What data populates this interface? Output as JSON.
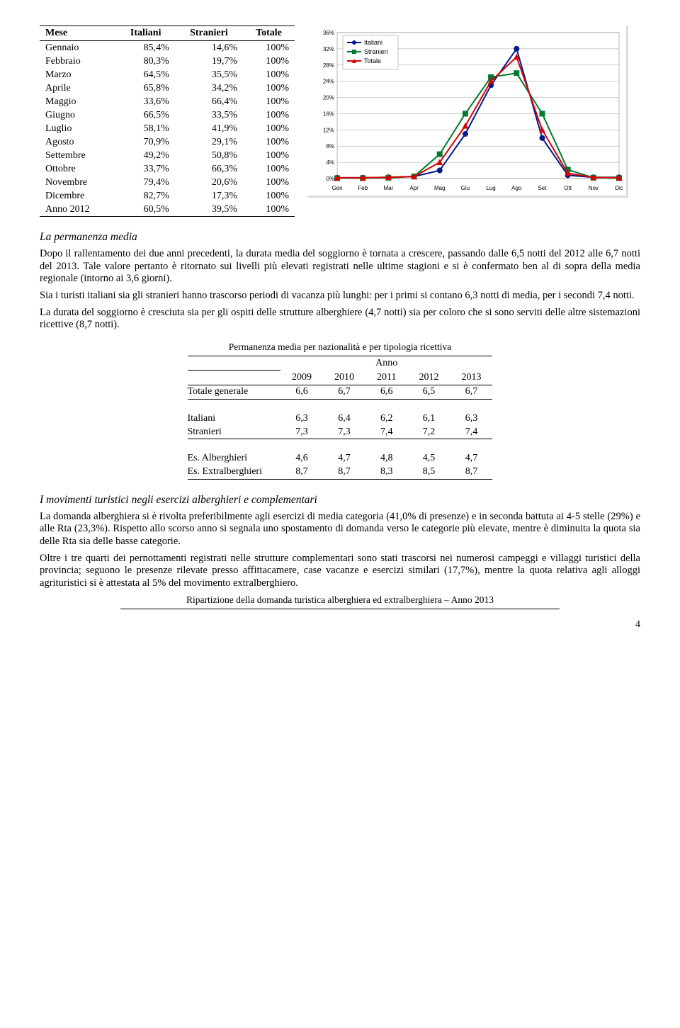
{
  "month_table": {
    "columns": [
      "Mese",
      "Italiani",
      "Stranieri",
      "Totale"
    ],
    "rows": [
      [
        "Gennaio",
        "85,4%",
        "14,6%",
        "100%"
      ],
      [
        "Febbraio",
        "80,3%",
        "19,7%",
        "100%"
      ],
      [
        "Marzo",
        "64,5%",
        "35,5%",
        "100%"
      ],
      [
        "Aprile",
        "65,8%",
        "34,2%",
        "100%"
      ],
      [
        "Maggio",
        "33,6%",
        "66,4%",
        "100%"
      ],
      [
        "Giugno",
        "66,5%",
        "33,5%",
        "100%"
      ],
      [
        "Luglio",
        "58,1%",
        "41,9%",
        "100%"
      ],
      [
        "Agosto",
        "70,9%",
        "29,1%",
        "100%"
      ],
      [
        "Settembre",
        "49,2%",
        "50,8%",
        "100%"
      ],
      [
        "Ottobre",
        "33,7%",
        "66,3%",
        "100%"
      ],
      [
        "Novembre",
        "79,4%",
        "20,6%",
        "100%"
      ],
      [
        "Dicembre",
        "82,7%",
        "17,3%",
        "100%"
      ],
      [
        "Anno 2012",
        "60,5%",
        "39,5%",
        "100%"
      ]
    ]
  },
  "chart": {
    "type": "line",
    "background_color": "#ffffff",
    "grid_color": "#888888",
    "ylim": [
      0,
      36
    ],
    "ytick_step": 4,
    "yticks": [
      "0%",
      "4%",
      "8%",
      "12%",
      "16%",
      "20%",
      "24%",
      "28%",
      "32%",
      "36%"
    ],
    "x_labels": [
      "Gen",
      "Feb",
      "Mar",
      "Apr",
      "Mag",
      "Giu",
      "Lug",
      "Ago",
      "Set",
      "Ott",
      "Nov",
      "Dic"
    ],
    "tick_fontsize": 8,
    "legend_fontsize": 9,
    "line_width": 2,
    "marker_style": "circle",
    "marker_size": 5,
    "series": [
      {
        "name": "Italiani",
        "color": "#001a8c",
        "marker": "circle",
        "values": [
          0.2,
          0.2,
          0.3,
          0.5,
          2.0,
          11.0,
          23.0,
          32.0,
          10.0,
          0.8,
          0.3,
          0.3
        ]
      },
      {
        "name": "Stranieri",
        "color": "#007a33",
        "marker": "square",
        "values": [
          0.1,
          0.1,
          0.2,
          0.5,
          6.0,
          16.0,
          25.0,
          26.0,
          16.0,
          2.2,
          0.2,
          0.1
        ]
      },
      {
        "name": "Totale",
        "color": "#d80000",
        "marker": "triangle",
        "values": [
          0.2,
          0.2,
          0.3,
          0.5,
          4.0,
          13.0,
          24.0,
          30.0,
          12.0,
          1.3,
          0.3,
          0.2
        ]
      }
    ]
  },
  "section1": {
    "title": "La permanenza media",
    "p1": "Dopo il rallentamento dei due anni precedenti, la durata media del soggiorno è tornata a crescere, passando dalle 6,5 notti del 2012 alle 6,7 notti del 2013. Tale valore pertanto è ritornato sui livelli più elevati registrati nelle ultime stagioni e si è confermato ben al di sopra della media regionale (intorno ai 3,6 giorni).",
    "p2": "Sia i turisti italiani sia gli stranieri hanno trascorso periodi di vacanza più lunghi: per i primi si contano 6,3 notti di media, per i secondi 7,4 notti.",
    "p3": "La durata del soggiorno è cresciuta sia per gli ospiti delle strutture alberghiere (4,7 notti) sia per coloro che si sono serviti delle altre sistemazioni ricettive (8,7 notti)."
  },
  "perm_table": {
    "title": "Permanenza media per nazionalità e per tipologia ricettiva",
    "anno_label": "Anno",
    "years": [
      "2009",
      "2010",
      "2011",
      "2012",
      "2013"
    ],
    "rows": [
      {
        "label": "Totale generale",
        "vals": [
          "6,6",
          "6,7",
          "6,6",
          "6,5",
          "6,7"
        ],
        "rule": true,
        "sep_after": true
      },
      {
        "label": "Italiani",
        "vals": [
          "6,3",
          "6,4",
          "6,2",
          "6,1",
          "6,3"
        ]
      },
      {
        "label": "Stranieri",
        "vals": [
          "7,3",
          "7,3",
          "7,4",
          "7,2",
          "7,4"
        ],
        "rule": true,
        "sep_after": true
      },
      {
        "label": "Es. Alberghieri",
        "vals": [
          "4,6",
          "4,7",
          "4,8",
          "4,5",
          "4,7"
        ]
      },
      {
        "label": "Es. Extralberghieri",
        "vals": [
          "8,7",
          "8,7",
          "8,3",
          "8,5",
          "8,7"
        ],
        "rule": true
      }
    ]
  },
  "section2": {
    "title": "I movimenti turistici negli esercizi alberghieri e complementari",
    "p1": "La domanda alberghiera si è rivolta preferibilmente agli esercizi di media categoria (41,0% di presenze) e in seconda battuta ai 4-5 stelle (29%) e alle Rta (23,3%). Rispetto allo scorso anno si segnala uno spostamento di domanda verso le categorie più elevate, mentre è diminuita la quota sia delle Rta sia delle basse categorie.",
    "p2": "Oltre i tre quarti dei pernottamenti registrati nelle strutture complementari sono stati trascorsi nei numerosi campeggi e villaggi turistici della provincia; seguono le presenze rilevate presso affittacamere, case vacanze e esercizi similari (17,7%), mentre la quota relativa agli alloggi agrituristici si è attestata al 5% del movimento extralberghiero."
  },
  "bottom_caption": "Ripartizione della domanda turistica alberghiera ed extralberghiera – Anno 2013",
  "page_number": "4"
}
